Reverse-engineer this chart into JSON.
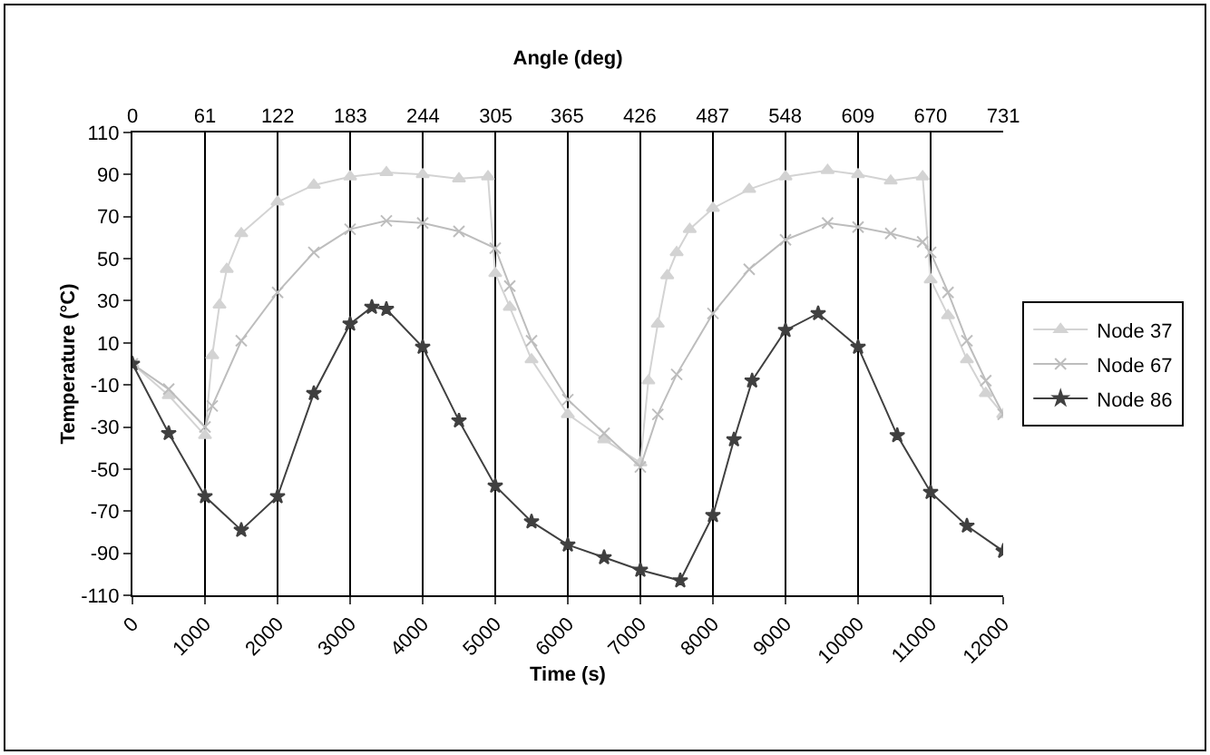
{
  "chart_data": {
    "type": "line",
    "xlabel": "Time (s)",
    "ylabel": "Temperature (°C)",
    "x2label": "Angle (deg)",
    "xlim": [
      0,
      12000
    ],
    "xticks": [
      0,
      1000,
      2000,
      3000,
      4000,
      5000,
      6000,
      7000,
      8000,
      9000,
      10000,
      11000,
      12000
    ],
    "x2lim": [
      0,
      731
    ],
    "x2ticks": [
      0,
      61,
      122,
      183,
      244,
      305,
      365,
      426,
      487,
      548,
      609,
      670,
      731
    ],
    "ylim": [
      -110,
      110
    ],
    "yticks": [
      -110,
      -90,
      -70,
      -50,
      -30,
      -10,
      10,
      30,
      50,
      70,
      90,
      110
    ],
    "grid": "x",
    "legend": "right",
    "series": [
      {
        "name": "Node 37",
        "color": "#d3d3d3",
        "marker": "triangle",
        "x": [
          0,
          500,
          1000,
          1100,
          1200,
          1300,
          1500,
          2000,
          2500,
          3000,
          3500,
          4000,
          4500,
          4900,
          5000,
          5200,
          5500,
          6000,
          6500,
          7000,
          7110,
          7240,
          7370,
          7500,
          7680,
          8000,
          8500,
          9000,
          9580,
          10000,
          10450,
          10890,
          11000,
          11240,
          11500,
          11760,
          12000
        ],
        "values": [
          0,
          -15,
          -34,
          4,
          28,
          45,
          62,
          77,
          85,
          89,
          91,
          90,
          88,
          89,
          43,
          27,
          2,
          -24,
          -36,
          -47,
          -8,
          19,
          42,
          53,
          64,
          74,
          83,
          89,
          92,
          90,
          87,
          89,
          40,
          23,
          2,
          -14,
          -24
        ]
      },
      {
        "name": "Node 67",
        "color": "#bdbdbd",
        "marker": "cross",
        "x": [
          0,
          500,
          1000,
          1100,
          1500,
          2000,
          2500,
          3000,
          3500,
          4000,
          4500,
          5000,
          5200,
          5500,
          6000,
          6500,
          7000,
          7240,
          7500,
          8000,
          8500,
          9000,
          9580,
          10000,
          10450,
          10890,
          11000,
          11240,
          11500,
          11760,
          12000
        ],
        "values": [
          0,
          -12,
          -30,
          -20,
          11,
          34,
          53,
          64,
          68,
          67,
          63,
          55,
          37,
          11,
          -17,
          -33,
          -49,
          -24,
          -5,
          24,
          45,
          59,
          67,
          65,
          62,
          58,
          53,
          34,
          11,
          -8,
          -24
        ]
      },
      {
        "name": "Node 86",
        "color": "#404040",
        "marker": "star",
        "x": [
          0,
          500,
          1000,
          1500,
          2000,
          2500,
          3000,
          3300,
          3500,
          4000,
          4500,
          5000,
          5500,
          6000,
          6500,
          7000,
          7550,
          8000,
          8290,
          8540,
          9000,
          9450,
          10000,
          10540,
          11000,
          11500,
          12000
        ],
        "values": [
          0,
          -33,
          -63,
          -79,
          -63,
          -14,
          19,
          27,
          26,
          8,
          -27,
          -58,
          -75,
          -86,
          -92,
          -98,
          -103,
          -72,
          -36,
          -8,
          16,
          24,
          8,
          -34,
          -61,
          -77,
          -89
        ]
      }
    ]
  }
}
